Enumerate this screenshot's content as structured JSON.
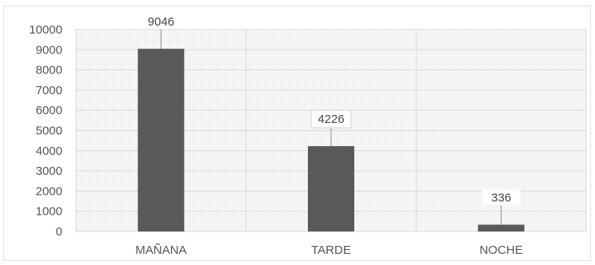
{
  "chart_data": {
    "type": "bar",
    "categories": [
      "MAÑANA",
      "TARDE",
      "NOCHE"
    ],
    "values": [
      9046,
      4226,
      336
    ],
    "data_labels": [
      "9046",
      "4226",
      "336"
    ],
    "ylim": [
      0,
      10000
    ],
    "yticks": [
      0,
      1000,
      2000,
      3000,
      4000,
      5000,
      6000,
      7000,
      8000,
      9000,
      10000
    ],
    "title": "",
    "xlabel": "",
    "ylabel": "",
    "grid": true,
    "legend": "none",
    "colors": {
      "bar": "#595959",
      "grid": "#d9d9d9",
      "plot_background": "#f5f5f5",
      "leader_line": "#8c8c8c",
      "label_box_border": "#d0d0d0"
    }
  }
}
